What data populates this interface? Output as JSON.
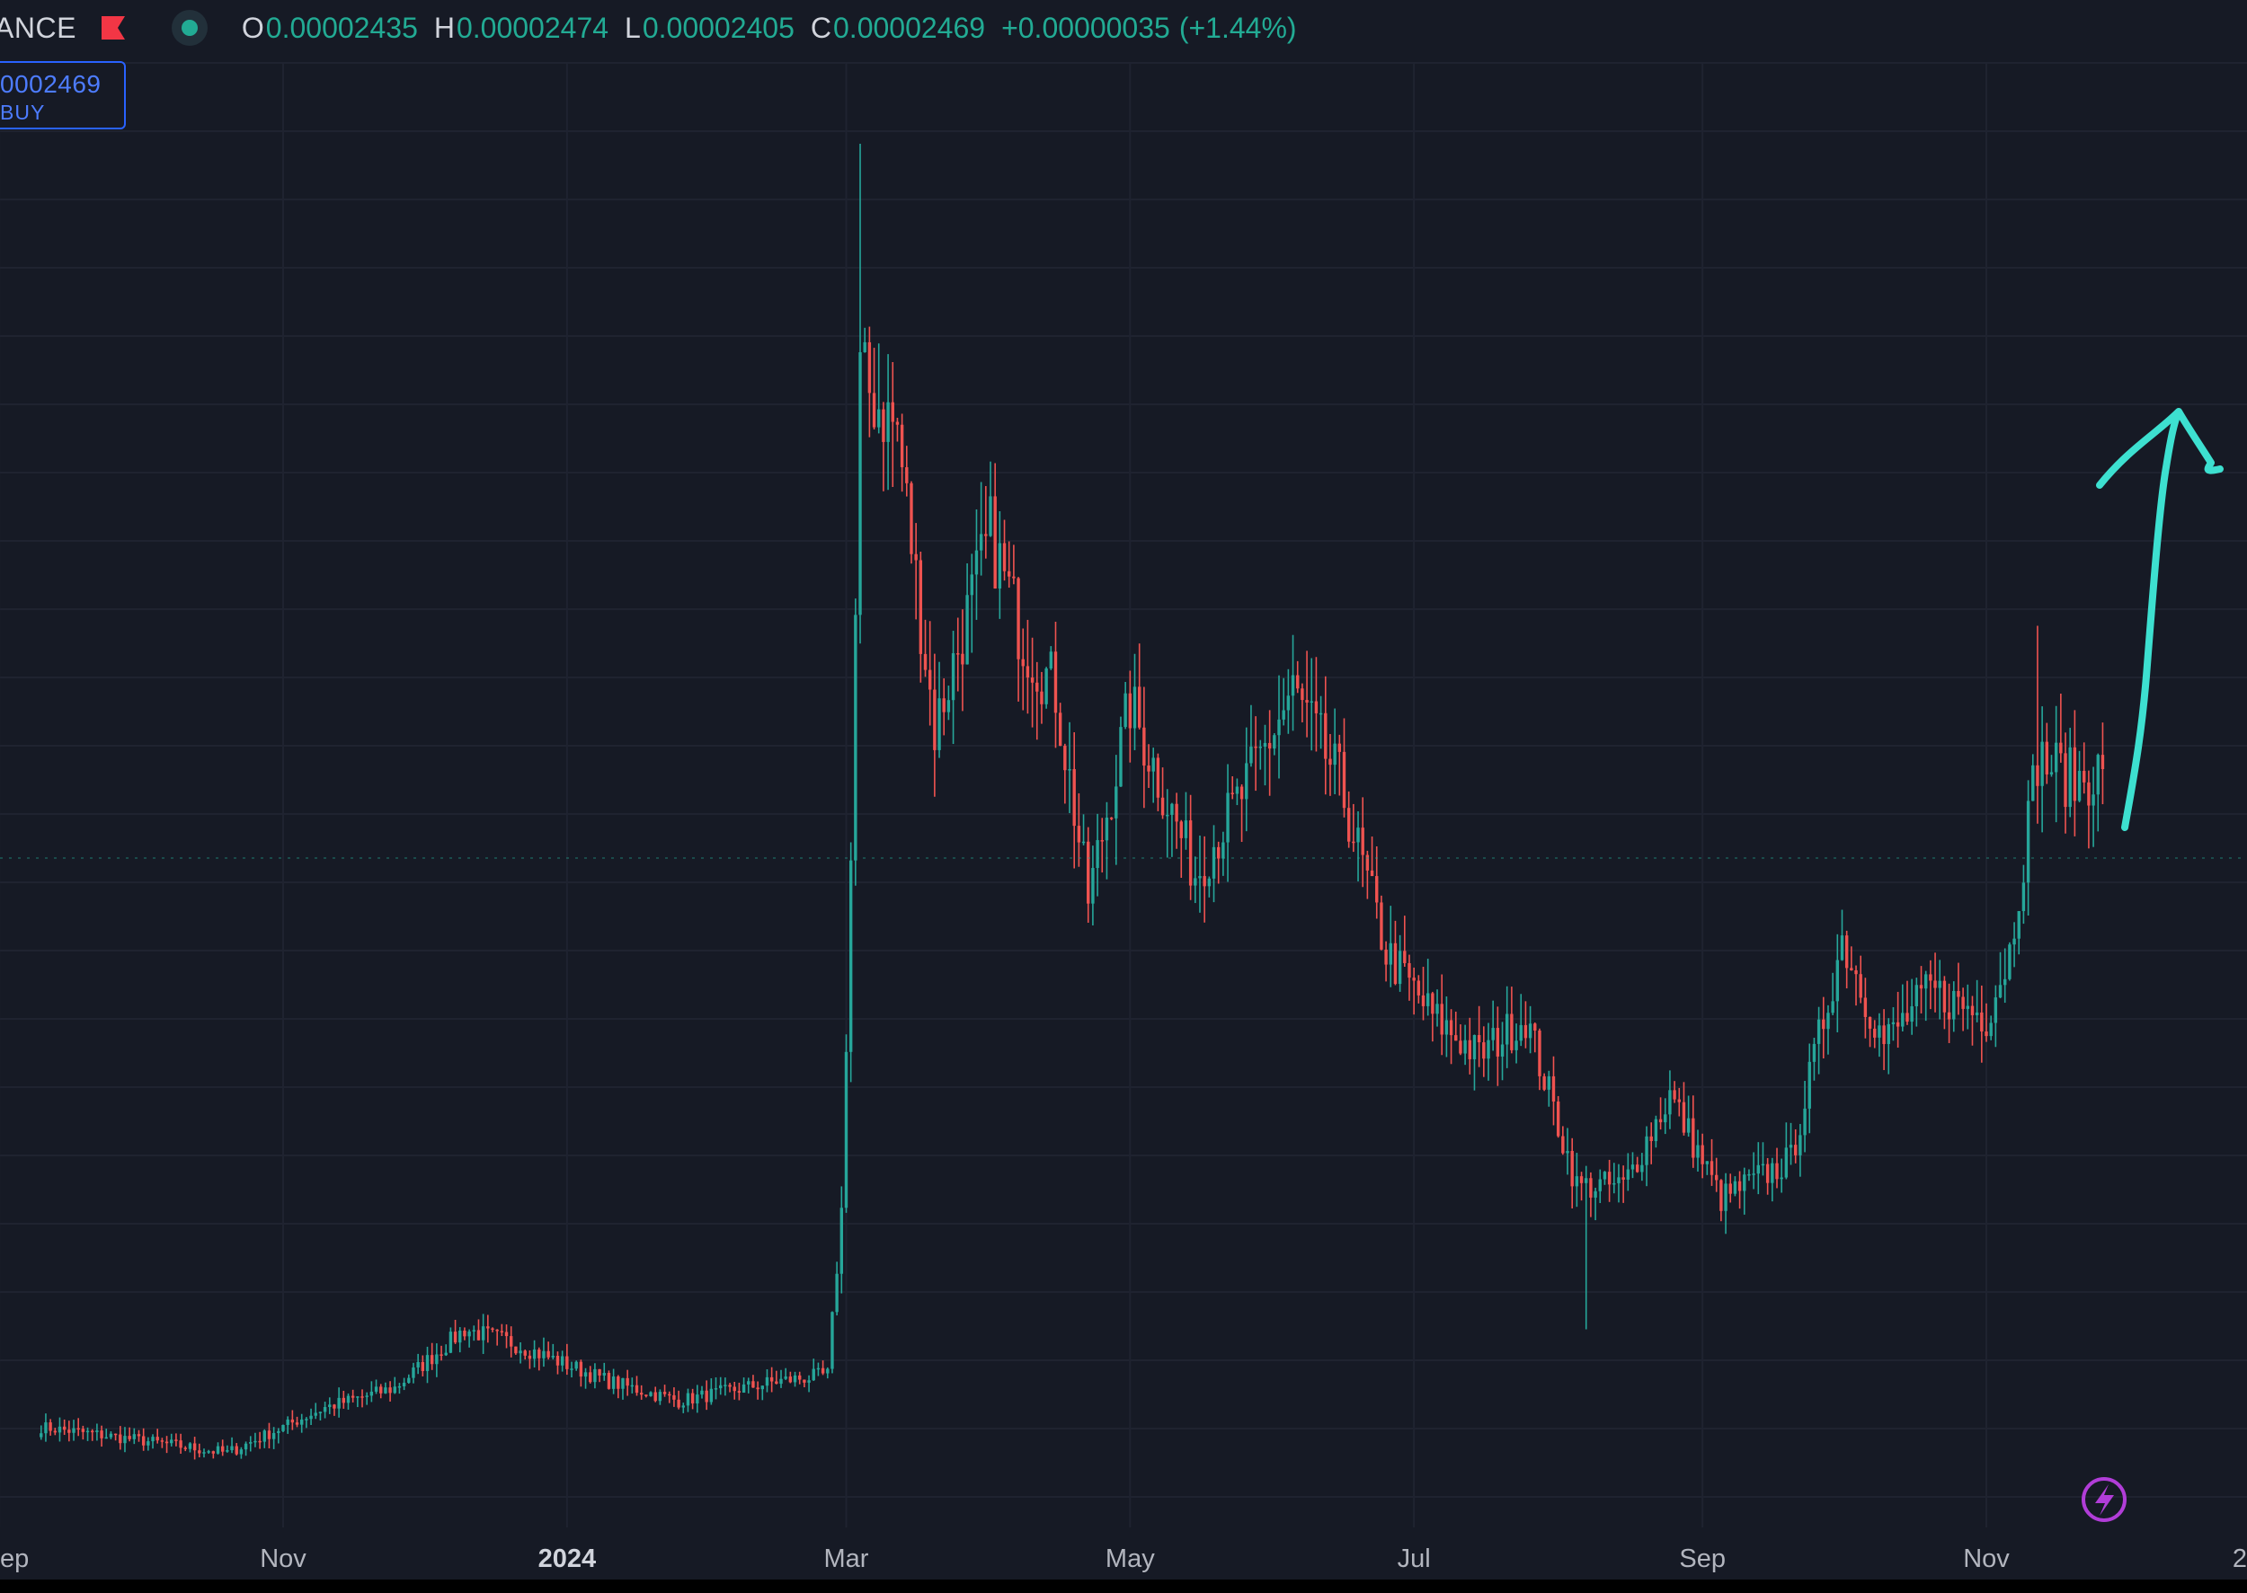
{
  "header": {
    "symbol_fragment": "ANCE",
    "flag_icon": "flag-icon",
    "status_icon": "market-open-dot-icon",
    "ohlc": [
      {
        "key": "O",
        "value": "0.00002435"
      },
      {
        "key": "H",
        "value": "0.00002474"
      },
      {
        "key": "L",
        "value": "0.00002405"
      },
      {
        "key": "C",
        "value": "0.00002469"
      }
    ],
    "change": "+0.00000035",
    "change_pct": "(+1.44%)"
  },
  "order_box": {
    "price": "0002469",
    "label": "BUY"
  },
  "colors": {
    "background": "#161a25",
    "up": "#26a69a",
    "down": "#ef5350",
    "annotation": "#3de0d0",
    "grid": "#1f2330",
    "buy": "#2962ff",
    "lightning": "#b13dd8"
  },
  "annotation": {
    "type": "hand-drawn upward arrow",
    "icon": "arrow-up-icon"
  },
  "lightning_icon": "lightning-bolt-icon",
  "chart_data": {
    "type": "candlestick",
    "xlabel": "",
    "ylabel": "",
    "x_range": [
      "2023-09",
      "2025-01"
    ],
    "x_tick_labels": [
      "ep",
      "Nov",
      "2024",
      "Mar",
      "May",
      "Jul",
      "Sep",
      "Nov",
      "2"
    ],
    "y_axis_units": "relative price (0 = lowest close, 100 = peak wick)",
    "ylim": [
      -2,
      100
    ],
    "grid": true,
    "last_close": "0.00002469",
    "anchors": [
      {
        "date": "2023-09-10",
        "close": 1.5
      },
      {
        "date": "2023-10-01",
        "close": 0.5
      },
      {
        "date": "2023-10-20",
        "close": -0.5
      },
      {
        "date": "2023-11-10",
        "close": 3
      },
      {
        "date": "2023-11-25",
        "close": 4.5
      },
      {
        "date": "2023-12-10",
        "close": 9
      },
      {
        "date": "2023-12-20",
        "close": 8
      },
      {
        "date": "2024-01-10",
        "close": 5
      },
      {
        "date": "2024-01-25",
        "close": 3.5
      },
      {
        "date": "2024-02-15",
        "close": 5
      },
      {
        "date": "2024-02-26",
        "close": 5.5
      },
      {
        "date": "2024-02-29",
        "close": 18
      },
      {
        "date": "2024-03-02",
        "close": 45
      },
      {
        "date": "2024-03-04",
        "close": 82
      },
      {
        "date": "2024-03-12",
        "close": 78
      },
      {
        "date": "2024-03-20",
        "close": 55
      },
      {
        "date": "2024-04-01",
        "close": 70
      },
      {
        "date": "2024-04-08",
        "close": 62
      },
      {
        "date": "2024-04-15",
        "close": 58
      },
      {
        "date": "2024-04-22",
        "close": 42
      },
      {
        "date": "2024-05-01",
        "close": 57
      },
      {
        "date": "2024-05-15",
        "close": 44
      },
      {
        "date": "2024-05-25",
        "close": 50
      },
      {
        "date": "2024-06-05",
        "close": 58
      },
      {
        "date": "2024-06-15",
        "close": 51
      },
      {
        "date": "2024-06-25",
        "close": 38
      },
      {
        "date": "2024-07-05",
        "close": 33
      },
      {
        "date": "2024-07-15",
        "close": 30
      },
      {
        "date": "2024-07-25",
        "close": 33
      },
      {
        "date": "2024-08-05",
        "close": 20
      },
      {
        "date": "2024-08-15",
        "close": 20
      },
      {
        "date": "2024-08-25",
        "close": 27
      },
      {
        "date": "2024-09-05",
        "close": 19
      },
      {
        "date": "2024-09-20",
        "close": 22
      },
      {
        "date": "2024-10-01",
        "close": 39
      },
      {
        "date": "2024-10-10",
        "close": 31
      },
      {
        "date": "2024-10-20",
        "close": 35
      },
      {
        "date": "2024-11-01",
        "close": 33
      },
      {
        "date": "2024-11-06",
        "close": 38
      },
      {
        "date": "2024-11-12",
        "close": 53
      },
      {
        "date": "2024-11-20",
        "close": 51
      },
      {
        "date": "2024-11-26",
        "close": 52
      }
    ],
    "wick_extremes": [
      {
        "date": "2024-03-04",
        "high": 100
      },
      {
        "date": "2024-11-12",
        "high": 63
      },
      {
        "date": "2024-08-07",
        "low": 9
      }
    ]
  }
}
